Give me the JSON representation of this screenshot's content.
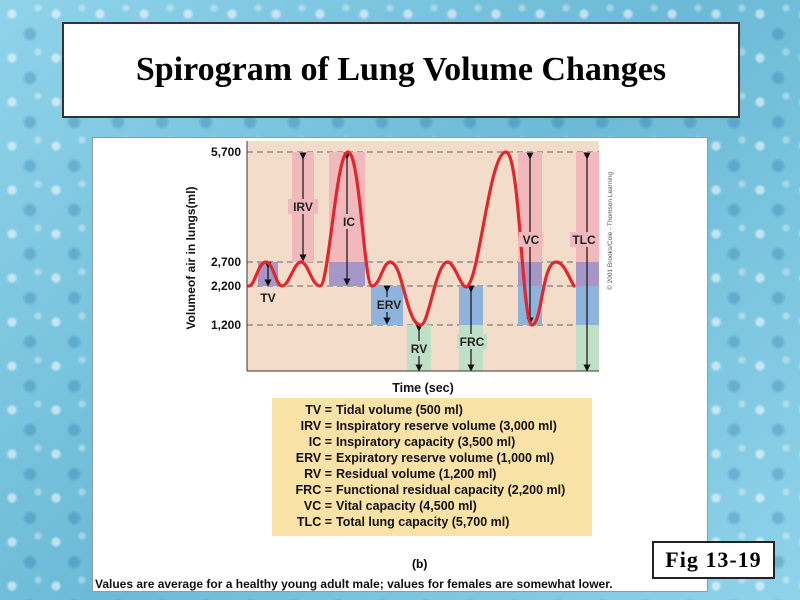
{
  "title": "Spirogram of Lung Volume Changes",
  "chart": {
    "ylabel": "Volumeof air in lungs(ml)",
    "xlabel": "Time (sec)",
    "copyright": "© 2001 Brooks/Cole - Thomson Learning",
    "yticks": [
      "5,700",
      "2,700",
      "2,200",
      "1,200"
    ],
    "region_labels": {
      "tv": "TV",
      "irv": "IRV",
      "ic": "IC",
      "erv": "ERV",
      "rv": "RV",
      "frc": "FRC",
      "vc": "VC",
      "tlc": "TLC"
    },
    "colors": {
      "background": "#f4dccb",
      "curve": "#e3262d",
      "pink_band": "#f2b9bd",
      "purple_band": "#a797c9",
      "blue_band": "#8fb4dc",
      "green_band": "#bfe0c6",
      "legend_bg": "#fbe2a6"
    }
  },
  "legend": [
    {
      "abbr": "TV =",
      "desc": "Tidal volume (500 ml)"
    },
    {
      "abbr": "IRV =",
      "desc": "Inspiratory reserve volume (3,000 ml)"
    },
    {
      "abbr": "IC =",
      "desc": "Inspiratory capacity (3,500 ml)"
    },
    {
      "abbr": "ERV =",
      "desc": "Expiratory reserve volume (1,000 ml)"
    },
    {
      "abbr": "RV =",
      "desc": "Residual volume (1,200 ml)"
    },
    {
      "abbr": "FRC =",
      "desc": "Functional residual capacity (2,200 ml)"
    },
    {
      "abbr": "VC =",
      "desc": "Vital capacity (4,500 ml)"
    },
    {
      "abbr": "TLC =",
      "desc": "Total lung capacity (5,700 ml)"
    }
  ],
  "sublabel": "(b)",
  "footnote": "Values are average for a healthy young adult male;  values for females are somewhat lower.",
  "fig_label": "Fig 13-19"
}
